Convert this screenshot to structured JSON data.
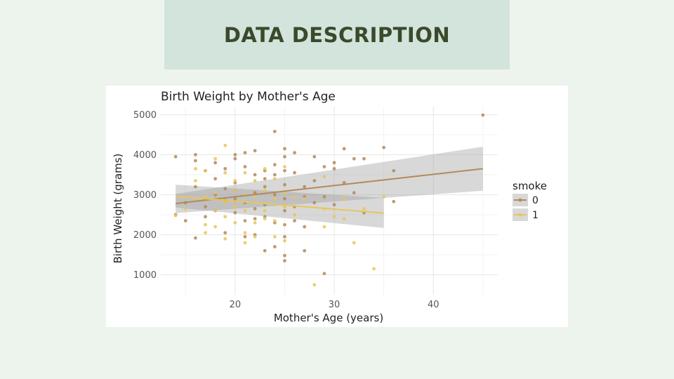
{
  "slide": {
    "heading": "DATA DESCRIPTION"
  },
  "colors": {
    "background": "#edf4ed",
    "heading_box": "#d3e4dc",
    "heading_text": "#3a4a2b",
    "smoke_0": "#b38a5c",
    "smoke_1": "#e8c65a",
    "ribbon": "#9e9e9e"
  },
  "chart_data": {
    "type": "scatter",
    "title": "Birth Weight by Mother's Age",
    "xlabel": "Mother's Age (years)",
    "ylabel": "Birth Weight (grams)",
    "xlim": [
      12.5,
      46.5
    ],
    "ylim": [
      500,
      5200
    ],
    "xticks": [
      20,
      30,
      40
    ],
    "yticks": [
      1000,
      2000,
      3000,
      4000,
      5000
    ],
    "grid": true,
    "legend": {
      "title": "smoke",
      "position": "right"
    },
    "series": [
      {
        "name": "0",
        "color": "#b38a5c",
        "points": [
          [
            14,
            3950
          ],
          [
            14,
            2500
          ],
          [
            15,
            2800
          ],
          [
            15,
            2350
          ],
          [
            16,
            4000
          ],
          [
            16,
            3850
          ],
          [
            16,
            3200
          ],
          [
            16,
            1920
          ],
          [
            17,
            2700
          ],
          [
            17,
            3600
          ],
          [
            17,
            2450
          ],
          [
            17,
            2900
          ],
          [
            18,
            3400
          ],
          [
            18,
            3800
          ],
          [
            18,
            2600
          ],
          [
            18,
            3000
          ],
          [
            19,
            3150
          ],
          [
            19,
            2850
          ],
          [
            19,
            3650
          ],
          [
            19,
            2050
          ],
          [
            20,
            3300
          ],
          [
            20,
            4000
          ],
          [
            20,
            2900
          ],
          [
            20,
            3100
          ],
          [
            20,
            2550
          ],
          [
            20,
            3900
          ],
          [
            21,
            4050
          ],
          [
            21,
            3700
          ],
          [
            21,
            2800
          ],
          [
            21,
            2350
          ],
          [
            21,
            1950
          ],
          [
            22,
            4100
          ],
          [
            22,
            3500
          ],
          [
            22,
            3050
          ],
          [
            22,
            2650
          ],
          [
            22,
            2400
          ],
          [
            22,
            2000
          ],
          [
            23,
            3600
          ],
          [
            23,
            3400
          ],
          [
            23,
            3200
          ],
          [
            23,
            2750
          ],
          [
            23,
            2450
          ],
          [
            23,
            1600
          ],
          [
            24,
            4580
          ],
          [
            24,
            3750
          ],
          [
            24,
            3500
          ],
          [
            24,
            3000
          ],
          [
            24,
            2300
          ],
          [
            24,
            1700
          ],
          [
            25,
            4150
          ],
          [
            25,
            3950
          ],
          [
            25,
            3600
          ],
          [
            25,
            3250
          ],
          [
            25,
            2900
          ],
          [
            25,
            2600
          ],
          [
            25,
            2250
          ],
          [
            25,
            1950
          ],
          [
            25,
            1480
          ],
          [
            25,
            1350
          ],
          [
            26,
            4050
          ],
          [
            26,
            3550
          ],
          [
            26,
            2700
          ],
          [
            26,
            2350
          ],
          [
            27,
            3200
          ],
          [
            27,
            2950
          ],
          [
            27,
            2200
          ],
          [
            27,
            1600
          ],
          [
            28,
            3950
          ],
          [
            28,
            3350
          ],
          [
            28,
            2800
          ],
          [
            29,
            3700
          ],
          [
            29,
            2950
          ],
          [
            29,
            1030
          ],
          [
            30,
            3800
          ],
          [
            30,
            3650
          ],
          [
            30,
            2750
          ],
          [
            31,
            4150
          ],
          [
            31,
            3300
          ],
          [
            32,
            3900
          ],
          [
            32,
            3050
          ],
          [
            33,
            2550
          ],
          [
            33,
            3900
          ],
          [
            35,
            4180
          ],
          [
            36,
            3600
          ],
          [
            36,
            2830
          ],
          [
            45,
            4990
          ]
        ],
        "fit": {
          "x": [
            14,
            45
          ],
          "y": [
            2780,
            3650
          ],
          "ci_low": [
            2540,
            3100
          ],
          "ci_high": [
            3020,
            4200
          ]
        }
      },
      {
        "name": "1",
        "color": "#e8c65a",
        "points": [
          [
            14,
            2480
          ],
          [
            15,
            2650
          ],
          [
            16,
            3650
          ],
          [
            16,
            3350
          ],
          [
            17,
            2950
          ],
          [
            17,
            2250
          ],
          [
            17,
            2050
          ],
          [
            17,
            3600
          ],
          [
            18,
            3050
          ],
          [
            18,
            2600
          ],
          [
            18,
            2200
          ],
          [
            18,
            3900
          ],
          [
            19,
            4230
          ],
          [
            19,
            3550
          ],
          [
            19,
            2800
          ],
          [
            19,
            2450
          ],
          [
            19,
            1900
          ],
          [
            20,
            3350
          ],
          [
            20,
            3100
          ],
          [
            20,
            2700
          ],
          [
            20,
            2300
          ],
          [
            21,
            3550
          ],
          [
            21,
            3000
          ],
          [
            21,
            2600
          ],
          [
            21,
            2050
          ],
          [
            21,
            1800
          ],
          [
            22,
            3350
          ],
          [
            22,
            2950
          ],
          [
            22,
            2300
          ],
          [
            22,
            1950
          ],
          [
            23,
            3650
          ],
          [
            23,
            3100
          ],
          [
            23,
            2600
          ],
          [
            23,
            2400
          ],
          [
            24,
            3400
          ],
          [
            24,
            2900
          ],
          [
            24,
            2350
          ],
          [
            24,
            1950
          ],
          [
            25,
            3700
          ],
          [
            25,
            3050
          ],
          [
            25,
            2700
          ],
          [
            25,
            1850
          ],
          [
            26,
            2950
          ],
          [
            26,
            2500
          ],
          [
            27,
            2900
          ],
          [
            28,
            750
          ],
          [
            29,
            3450
          ],
          [
            29,
            2650
          ],
          [
            29,
            2200
          ],
          [
            30,
            2450
          ],
          [
            31,
            2900
          ],
          [
            31,
            2400
          ],
          [
            32,
            1800
          ],
          [
            33,
            2650
          ],
          [
            34,
            1150
          ],
          [
            35,
            2950
          ]
        ],
        "fit": {
          "x": [
            14,
            35
          ],
          "y": [
            2960,
            2540
          ],
          "ci_low": [
            2680,
            2170
          ],
          "ci_high": [
            3250,
            2920
          ]
        }
      }
    ]
  }
}
